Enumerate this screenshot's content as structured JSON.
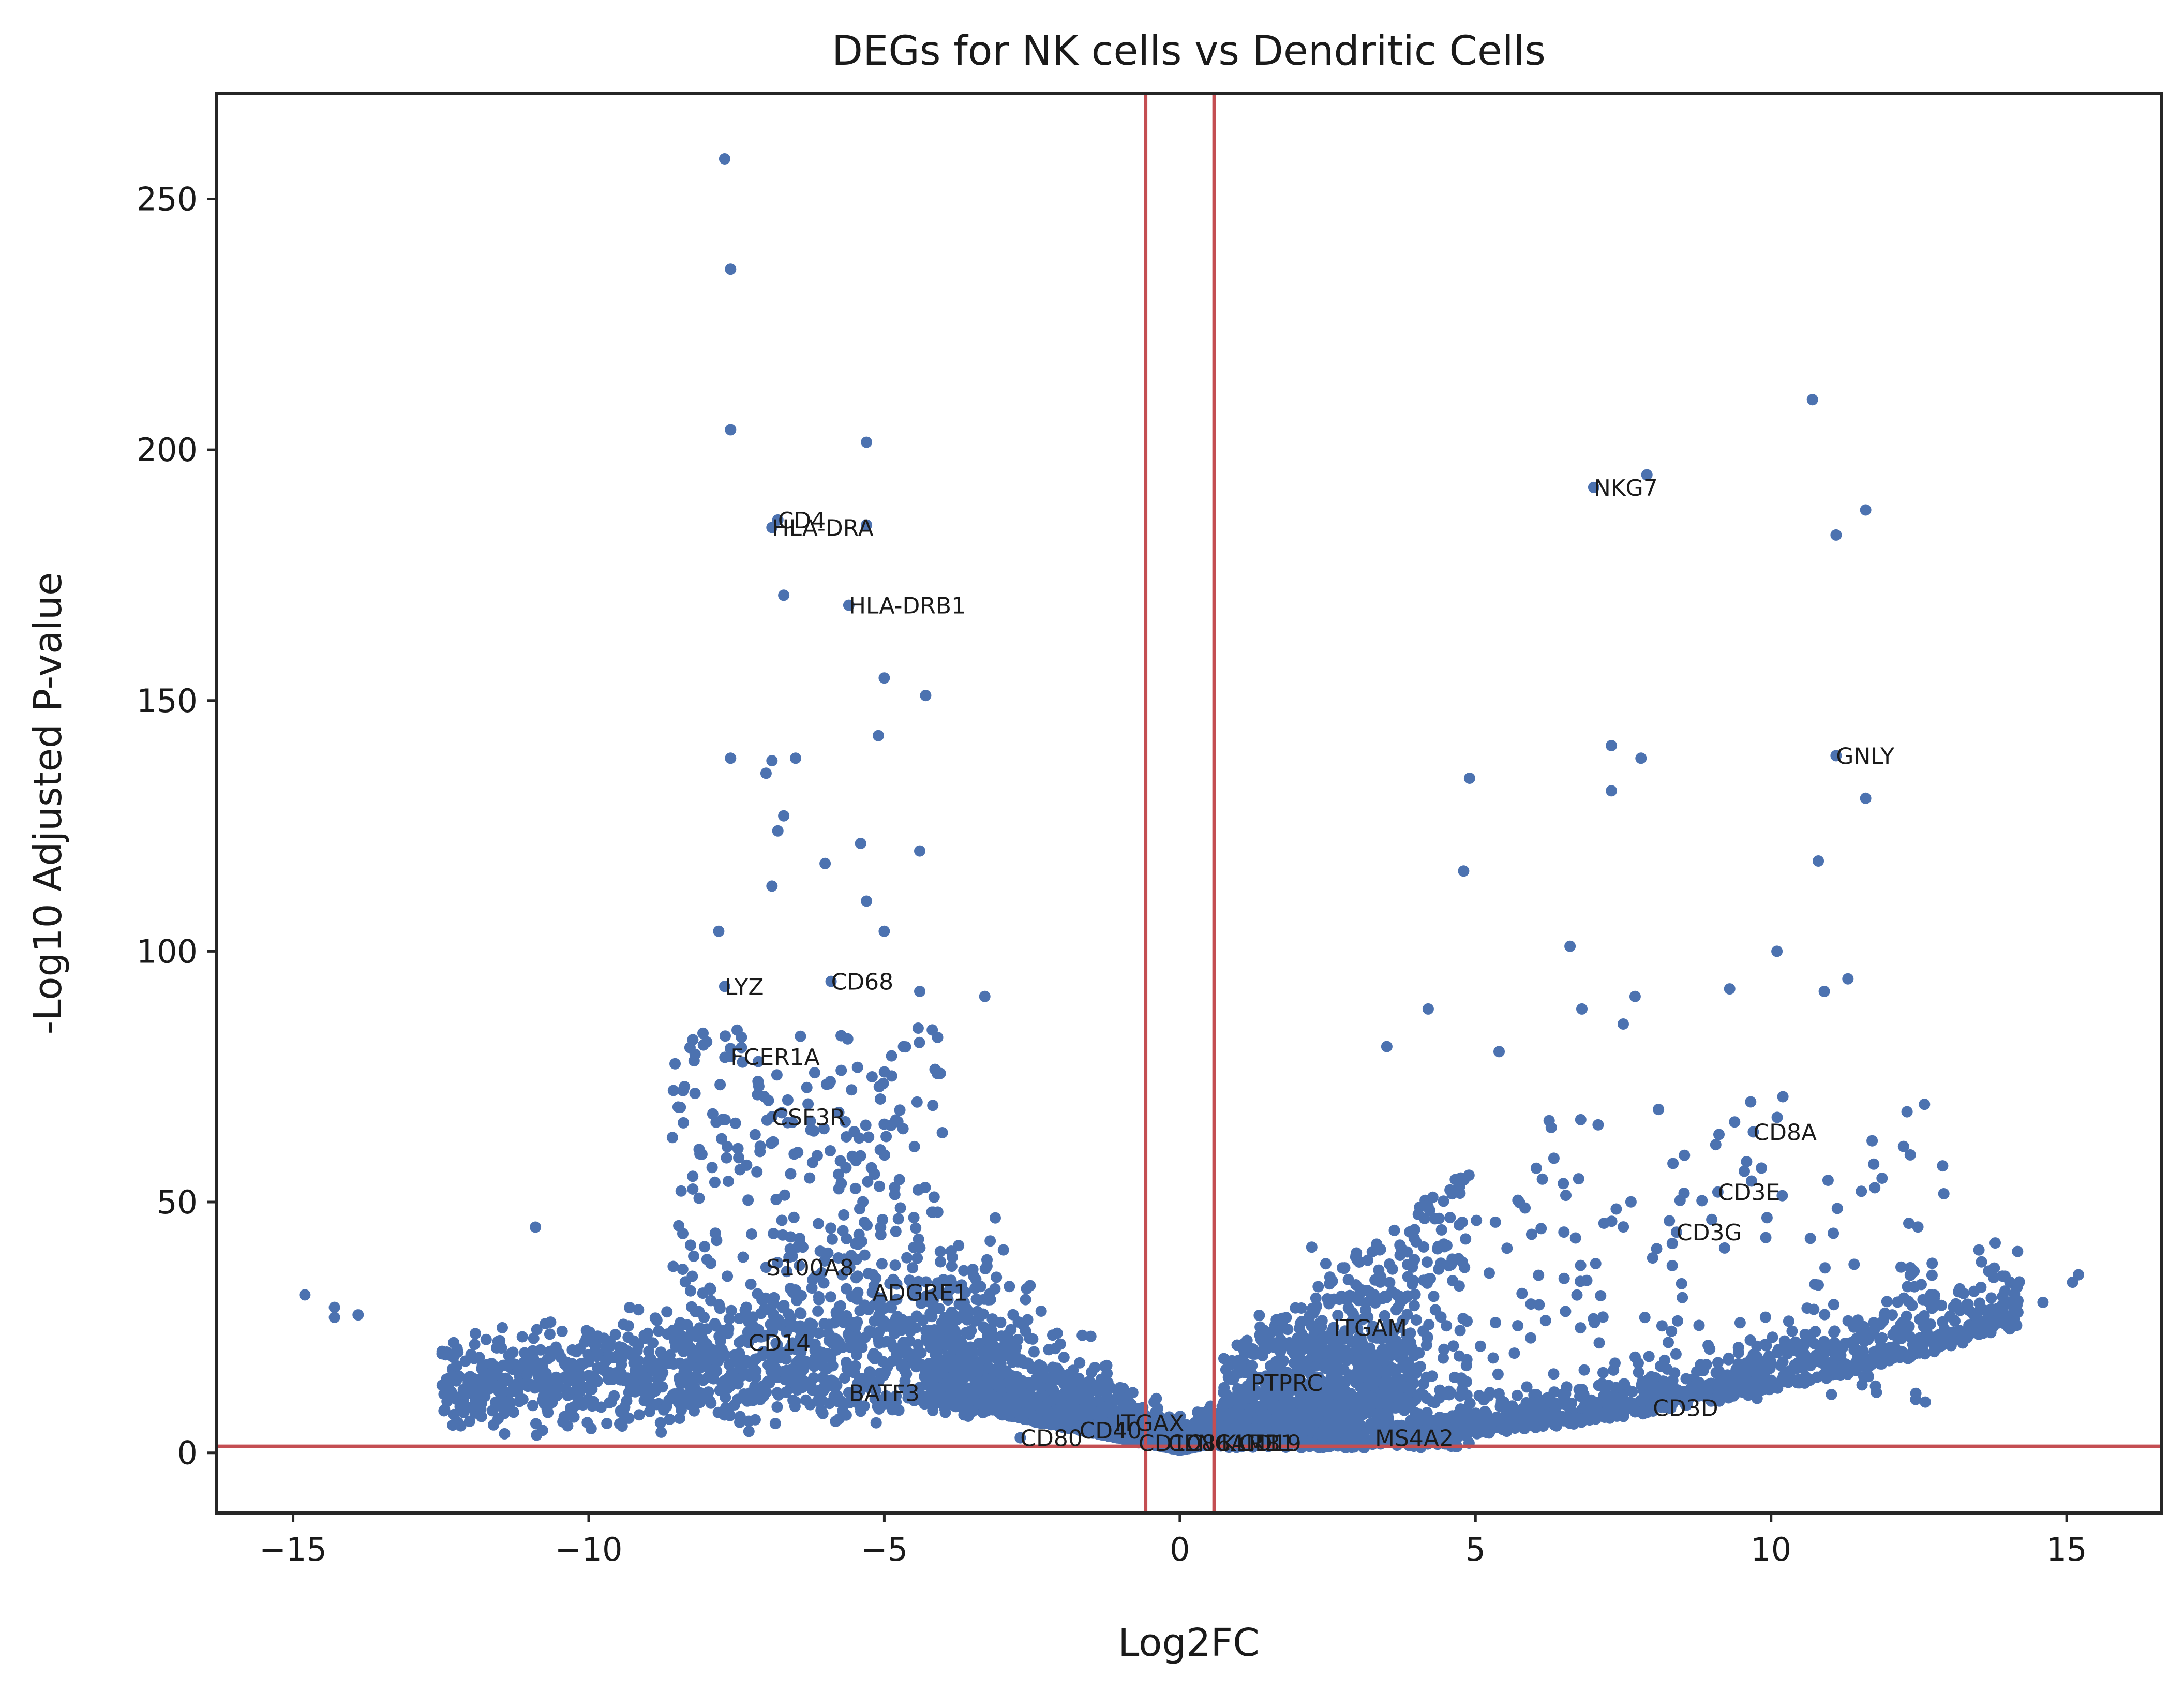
{
  "chart_data": {
    "type": "scatter",
    "title": "DEGs for NK cells vs Dendritic Cells",
    "xlabel": "Log2FC",
    "ylabel": "-Log10 Adjusted P-value",
    "xlim": [
      -16.3,
      16.6
    ],
    "ylim": [
      -12,
      271
    ],
    "xticks": [
      -15,
      -10,
      -5,
      0,
      5,
      10,
      15
    ],
    "xtick_labels": [
      "−15",
      "−10",
      "−5",
      "0",
      "5",
      "10",
      "15"
    ],
    "yticks": [
      0,
      50,
      100,
      150,
      200,
      250
    ],
    "ytick_labels": [
      "0",
      "50",
      "100",
      "150",
      "200",
      "250"
    ],
    "grid": false,
    "legend": "none",
    "thresholds": {
      "log2fc": [
        -0.58,
        0.58
      ],
      "neglog10_padj": 1.3
    },
    "colors": {
      "points": "#4c72b0",
      "threshold_lines": "#c44e52"
    },
    "labeled_genes": [
      {
        "gene": "CD4",
        "x": -6.8,
        "y": 186
      },
      {
        "gene": "HLA-DRA",
        "x": -6.9,
        "y": 184.5
      },
      {
        "gene": "HLA-DRB1",
        "x": -5.6,
        "y": 169
      },
      {
        "gene": "NKG7",
        "x": 7.0,
        "y": 192.5
      },
      {
        "gene": "GNLY",
        "x": 11.1,
        "y": 139
      },
      {
        "gene": "LYZ",
        "x": -7.7,
        "y": 93
      },
      {
        "gene": "CD68",
        "x": -5.9,
        "y": 94
      },
      {
        "gene": "FCER1A",
        "x": -7.6,
        "y": 79
      },
      {
        "gene": "CSF3R",
        "x": -6.9,
        "y": 67
      },
      {
        "gene": "CD8A",
        "x": 9.7,
        "y": 64
      },
      {
        "gene": "CD3E",
        "x": 9.1,
        "y": 52
      },
      {
        "gene": "CD3G",
        "x": 8.4,
        "y": 44
      },
      {
        "gene": "S100A8",
        "x": -7.0,
        "y": 37
      },
      {
        "gene": "ADGRE1",
        "x": -5.2,
        "y": 32
      },
      {
        "gene": "CD14",
        "x": -7.3,
        "y": 22
      },
      {
        "gene": "ITGAM",
        "x": 2.6,
        "y": 25
      },
      {
        "gene": "PTPRC",
        "x": 1.2,
        "y": 14
      },
      {
        "gene": "BATF3",
        "x": -5.6,
        "y": 12
      },
      {
        "gene": "CD3D",
        "x": 8.0,
        "y": 9
      },
      {
        "gene": "ITGAX",
        "x": -1.1,
        "y": 6
      },
      {
        "gene": "CD40",
        "x": -1.7,
        "y": 4.5
      },
      {
        "gene": "CD80",
        "x": -2.7,
        "y": 3
      },
      {
        "gene": "MS4A2",
        "x": 3.3,
        "y": 3
      },
      {
        "gene": "CD1C",
        "x": -0.7,
        "y": 2
      },
      {
        "gene": "CD86",
        "x": -0.2,
        "y": 2
      },
      {
        "gene": "NCAM1",
        "x": 0.3,
        "y": 2
      },
      {
        "gene": "KLRB1",
        "x": 0.7,
        "y": 2
      },
      {
        "gene": "CD19",
        "x": 1.0,
        "y": 2
      }
    ],
    "extreme_points": [
      {
        "x": -7.7,
        "y": 258
      },
      {
        "x": -7.6,
        "y": 236
      },
      {
        "x": -7.6,
        "y": 204
      },
      {
        "x": -5.3,
        "y": 201.5
      },
      {
        "x": -6.7,
        "y": 171
      },
      {
        "x": -5.3,
        "y": 185
      },
      {
        "x": -5.0,
        "y": 154.5
      },
      {
        "x": -4.3,
        "y": 151
      },
      {
        "x": -5.1,
        "y": 143
      },
      {
        "x": -7.6,
        "y": 138.5
      },
      {
        "x": -6.9,
        "y": 138
      },
      {
        "x": -6.5,
        "y": 138.5
      },
      {
        "x": -7.0,
        "y": 135.5
      },
      {
        "x": -6.7,
        "y": 127
      },
      {
        "x": -6.8,
        "y": 124
      },
      {
        "x": -5.4,
        "y": 121.5
      },
      {
        "x": -4.4,
        "y": 120
      },
      {
        "x": -6.0,
        "y": 117.5
      },
      {
        "x": -6.9,
        "y": 113
      },
      {
        "x": -5.3,
        "y": 110
      },
      {
        "x": -5.0,
        "y": 104
      },
      {
        "x": -7.8,
        "y": 104
      },
      {
        "x": -3.3,
        "y": 91
      },
      {
        "x": -4.4,
        "y": 92
      },
      {
        "x": -14.8,
        "y": 31.5
      },
      {
        "x": -14.3,
        "y": 29
      },
      {
        "x": -13.9,
        "y": 27.5
      },
      {
        "x": -14.3,
        "y": 27
      },
      {
        "x": -10.9,
        "y": 45
      },
      {
        "x": 10.7,
        "y": 210
      },
      {
        "x": 7.9,
        "y": 195
      },
      {
        "x": 11.6,
        "y": 188
      },
      {
        "x": 11.1,
        "y": 183
      },
      {
        "x": 7.3,
        "y": 141
      },
      {
        "x": 7.8,
        "y": 138.5
      },
      {
        "x": 4.9,
        "y": 134.5
      },
      {
        "x": 7.3,
        "y": 132
      },
      {
        "x": 11.6,
        "y": 130.5
      },
      {
        "x": 10.8,
        "y": 118
      },
      {
        "x": 4.8,
        "y": 116
      },
      {
        "x": 6.6,
        "y": 101
      },
      {
        "x": 10.1,
        "y": 100
      },
      {
        "x": 11.3,
        "y": 94.5
      },
      {
        "x": 9.3,
        "y": 92.5
      },
      {
        "x": 10.9,
        "y": 92
      },
      {
        "x": 7.7,
        "y": 91
      },
      {
        "x": 6.8,
        "y": 88.5
      },
      {
        "x": 4.2,
        "y": 88.5
      },
      {
        "x": 7.5,
        "y": 85.5
      },
      {
        "x": 3.5,
        "y": 81
      },
      {
        "x": 5.4,
        "y": 80
      },
      {
        "x": 12.3,
        "y": 68
      },
      {
        "x": 10.2,
        "y": 71
      },
      {
        "x": 15.2,
        "y": 35.5
      },
      {
        "x": 15.1,
        "y": 34
      },
      {
        "x": 14.6,
        "y": 30
      }
    ]
  }
}
